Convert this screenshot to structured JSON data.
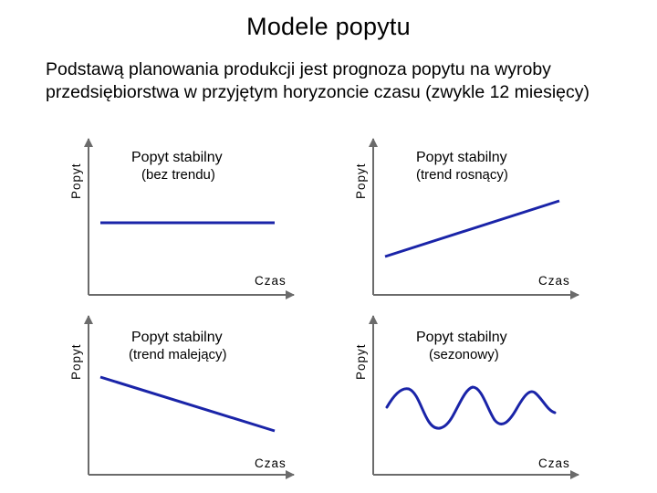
{
  "page": {
    "title": "Modele popytu",
    "subtitle_line1": "Podstawą planowania produkcji jest prognoza popytu na wyroby",
    "subtitle_line2": "przedsiębiorstwa w przyjętym horyzoncie czasu (zwykle 12 miesięcy)"
  },
  "colors": {
    "axis": "#6b6b6b",
    "line": "#1a24a8"
  },
  "panels": [
    {
      "id": "stable",
      "title": "Popyt stabilny",
      "subtitle": "(bez trendu)",
      "y_label": "Popyt",
      "x_label": "Czas"
    },
    {
      "id": "increasing",
      "title": "Popyt stabilny",
      "subtitle": "(trend rosnący)",
      "y_label": "Popyt",
      "x_label": "Czas"
    },
    {
      "id": "decreasing",
      "title": "Popyt stabilny",
      "subtitle": "(trend malejący)",
      "y_label": "Popyt",
      "x_label": "Czas"
    },
    {
      "id": "seasonal",
      "title": "Popyt stabilny",
      "subtitle": "(sezonowy)",
      "y_label": "Popyt",
      "x_label": "Czas"
    }
  ]
}
